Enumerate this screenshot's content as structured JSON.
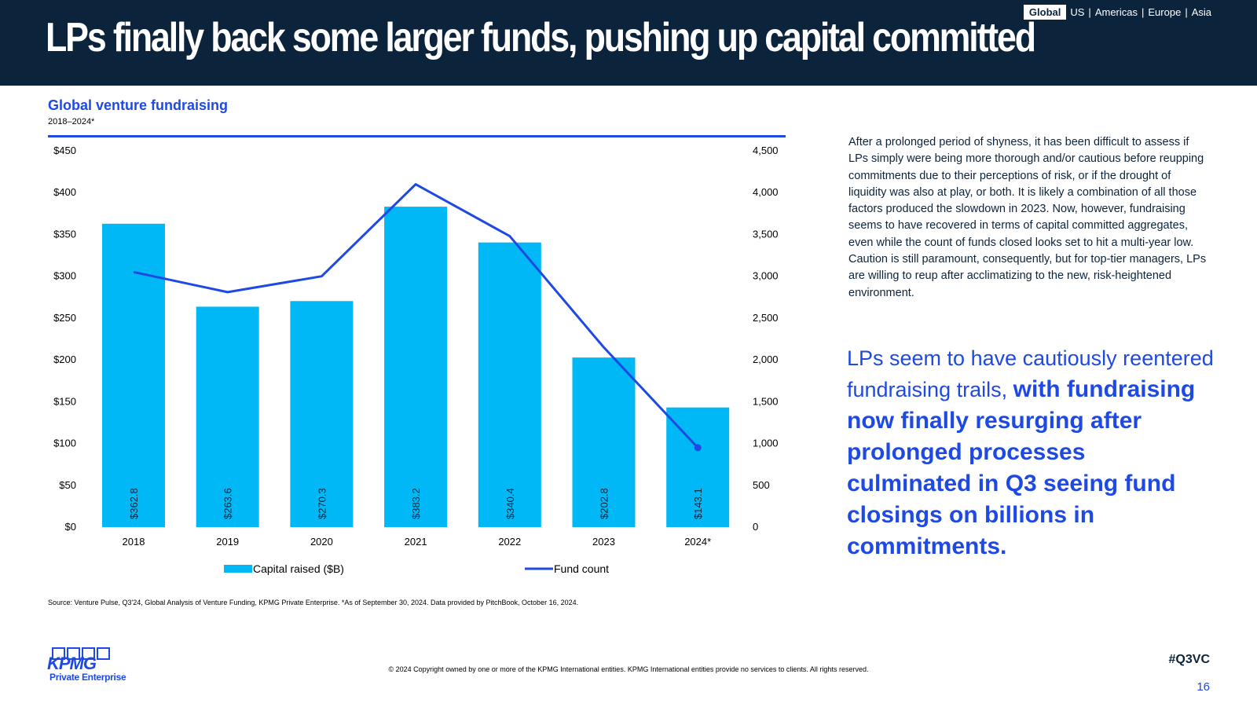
{
  "header": {
    "title": "LPs finally back some larger funds, pushing up capital committed",
    "regions": [
      "Global",
      "US",
      "Americas",
      "Europe",
      "Asia"
    ],
    "active_region": "Global"
  },
  "chart_data": {
    "type": "bar",
    "title": "Global venture fundraising",
    "subtitle": "2018–2024*",
    "categories": [
      "2018",
      "2019",
      "2020",
      "2021",
      "2022",
      "2023",
      "2024*"
    ],
    "series": [
      {
        "name": "Capital raised ($B)",
        "kind": "bar",
        "axis": "left",
        "values": [
          362.8,
          263.6,
          270.3,
          383.2,
          340.4,
          202.8,
          143.1
        ],
        "labels": [
          "$362.8",
          "$263.6",
          "$270.3",
          "$383.2",
          "$340.4",
          "$202.8",
          "$143.1"
        ],
        "color": "#00b8f5"
      },
      {
        "name": "Fund count",
        "kind": "line",
        "axis": "right",
        "values": [
          3050,
          2810,
          3000,
          4100,
          3480,
          2150,
          950
        ],
        "color": "#1e49e2"
      }
    ],
    "y_left": {
      "min": 0,
      "max": 450,
      "step": 50,
      "tick_labels": [
        "$0",
        "$50",
        "$100",
        "$150",
        "$200",
        "$250",
        "$300",
        "$350",
        "$400",
        "$450"
      ]
    },
    "y_right": {
      "min": 0,
      "max": 4500,
      "step": 500,
      "tick_labels": [
        "0",
        "500",
        "1,000",
        "1,500",
        "2,000",
        "2,500",
        "3,000",
        "3,500",
        "4,000",
        "4,500"
      ]
    },
    "legend_position": "bottom",
    "grid": false
  },
  "body_text": "After a prolonged period of shyness, it has been difficult to assess if LPs simply were being more thorough and/or cautious before reupping commitments due to their perceptions of risk, or if the drought of liquidity was also at play, or both. It is likely a combination of all those factors produced the slowdown in 2023. Now, however, fundraising seems to have recovered in terms of capital committed aggregates, even while the count of funds closed looks set to hit a multi-year low. Caution is still paramount, consequently, but for top-tier managers, LPs are willing to reup after acclimatizing to the new, risk-heightened environment.",
  "callout": {
    "normal": "LPs seem to have cautiously reentered fundraising trails, ",
    "bold": "with fundraising now finally resurging after prolonged processes culminated in Q3 seeing fund closings on billions in commitments."
  },
  "source": "Source: Venture Pulse, Q3'24, Global Analysis of Venture Funding, KPMG Private Enterprise. *As of September 30, 2024. Data provided by PitchBook, October 16, 2024.",
  "copyright": "© 2024 Copyright owned by one or more of the KPMG International entities. KPMG International entities provide no services to clients. All rights reserved.",
  "hashtag": "#Q3VC",
  "page_number": "16",
  "logo": {
    "word": "KPMG",
    "sub": "Private Enterprise"
  },
  "colors": {
    "navy": "#0c233c",
    "blue": "#1e49e2",
    "cyan": "#00b8f5"
  }
}
